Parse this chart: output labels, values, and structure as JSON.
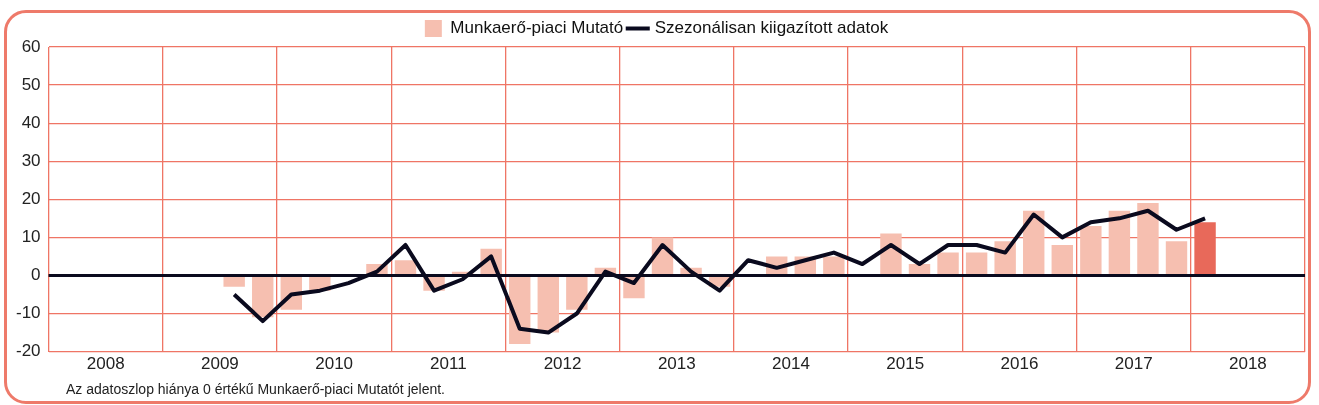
{
  "chart_data": {
    "type": "bar",
    "x": [
      2009.625,
      2009.875,
      2010.125,
      2010.375,
      2010.625,
      2010.875,
      2011.125,
      2011.375,
      2011.625,
      2011.875,
      2012.125,
      2012.375,
      2012.625,
      2012.875,
      2013.125,
      2013.375,
      2013.625,
      2013.875,
      2014.125,
      2014.375,
      2014.625,
      2014.875,
      2015.125,
      2015.375,
      2015.625,
      2015.875,
      2016.125,
      2016.375,
      2016.625,
      2016.875,
      2017.125,
      2017.375,
      2017.625,
      2017.875,
      2018.125
    ],
    "series": [
      {
        "name": "Munkaerő-piaci Mutató",
        "color": "#f6bfb0",
        "colors": [
          "#f6bfb0",
          "#f6bfb0",
          "#f6bfb0",
          "#f6bfb0",
          "#f6bfb0",
          "#f6bfb0",
          "#f6bfb0",
          "#f6bfb0",
          "#f6bfb0",
          "#f6bfb0",
          "#f6bfb0",
          "#f6bfb0",
          "#f6bfb0",
          "#f6bfb0",
          "#f6bfb0",
          "#f6bfb0",
          "#f6bfb0",
          "#f6bfb0",
          "#f6bfb0",
          "#f6bfb0",
          "#f6bfb0",
          "#f6bfb0",
          "#f6bfb0",
          "#f6bfb0",
          "#f6bfb0",
          "#f6bfb0",
          "#f6bfb0",
          "#f6bfb0",
          "#f6bfb0",
          "#f6bfb0",
          "#f6bfb0",
          "#f6bfb0",
          "#f6bfb0",
          "#f6bfb0",
          "#e8695a"
        ],
        "values": [
          -3,
          -11,
          -9,
          -4,
          0,
          3,
          4,
          -4,
          1,
          7,
          -18,
          -15,
          -9,
          2,
          -6,
          10,
          2,
          -3,
          0,
          5,
          5,
          5,
          0,
          11,
          3,
          6,
          6,
          9,
          17,
          8,
          13,
          17,
          19,
          9,
          14
        ]
      },
      {
        "name": "Szezonálisan kiigazított adatok",
        "type": "line",
        "color": "#0a0a1e",
        "values": [
          -5,
          -12,
          -5,
          -4,
          -2,
          1,
          8,
          -4,
          -1,
          5,
          -14,
          -15,
          -10,
          1,
          -2,
          8,
          1,
          -4,
          4,
          2,
          4,
          6,
          3,
          8,
          3,
          8,
          8,
          6,
          16,
          10,
          14,
          15,
          17,
          12,
          15
        ]
      }
    ],
    "xlim": [
      2008,
      2019
    ],
    "xticks": [
      {
        "value": 2008,
        "label": null
      },
      {
        "value": 2008.5,
        "label": "2008"
      },
      {
        "value": 2009,
        "label": null
      },
      {
        "value": 2009.5,
        "label": "2009"
      },
      {
        "value": 2010,
        "label": null
      },
      {
        "value": 2010.5,
        "label": "2010"
      },
      {
        "value": 2011,
        "label": null
      },
      {
        "value": 2011.5,
        "label": "2011"
      },
      {
        "value": 2012,
        "label": null
      },
      {
        "value": 2012.5,
        "label": "2012"
      },
      {
        "value": 2013,
        "label": null
      },
      {
        "value": 2013.5,
        "label": "2013"
      },
      {
        "value": 2014,
        "label": null
      },
      {
        "value": 2014.5,
        "label": "2014"
      },
      {
        "value": 2015,
        "label": null
      },
      {
        "value": 2015.5,
        "label": "2015"
      },
      {
        "value": 2016,
        "label": null
      },
      {
        "value": 2016.5,
        "label": "2016"
      },
      {
        "value": 2017,
        "label": null
      },
      {
        "value": 2017.5,
        "label": "2017"
      },
      {
        "value": 2018,
        "label": null
      },
      {
        "value": 2018.5,
        "label": "2018"
      },
      {
        "value": 2019,
        "label": null
      }
    ],
    "ylim": [
      -20,
      60
    ],
    "yticks": [
      -20,
      -10,
      0,
      10,
      20,
      30,
      40,
      50,
      60
    ],
    "grid": true,
    "legend": "top",
    "marker": "none",
    "line_style": "solid",
    "ref_lines": [
      {
        "axis": "y",
        "value": 0,
        "color": "#0a0a1e"
      }
    ],
    "annotations": [
      "Az adatoszlop hiánya 0 értékű Munkaerő-piaci Mutatót jelent."
    ]
  }
}
